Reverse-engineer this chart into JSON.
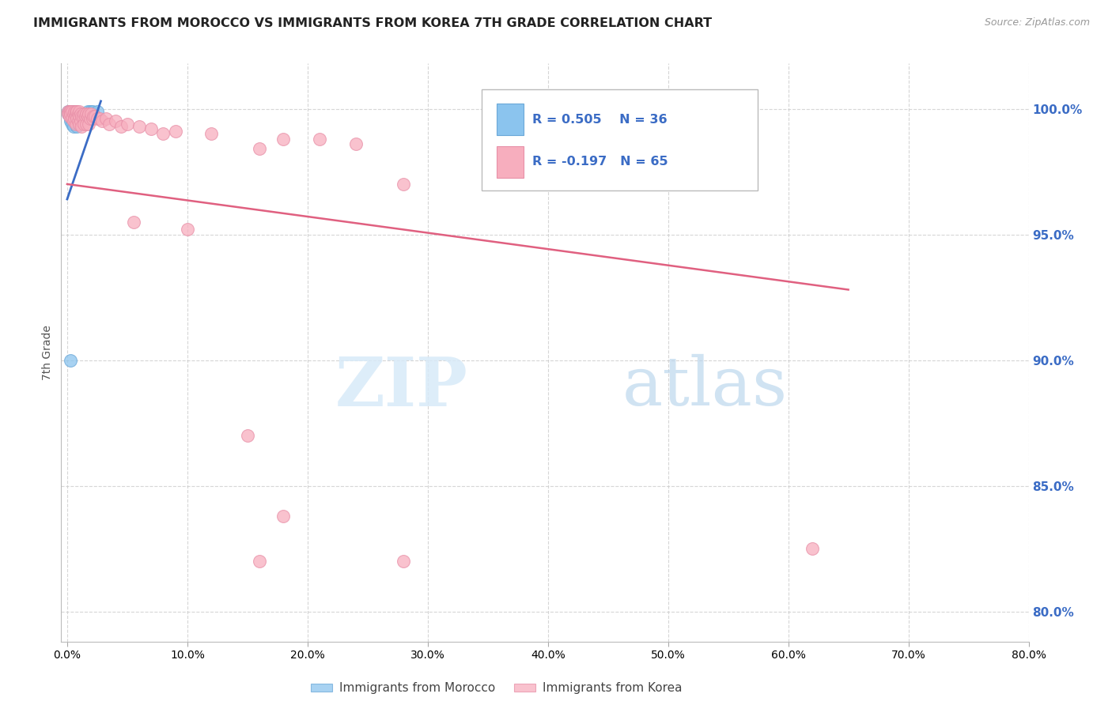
{
  "title": "IMMIGRANTS FROM MOROCCO VS IMMIGRANTS FROM KOREA 7TH GRADE CORRELATION CHART",
  "source": "Source: ZipAtlas.com",
  "ylabel": "7th Grade",
  "x_ticks": [
    0.0,
    0.1,
    0.2,
    0.3,
    0.4,
    0.5,
    0.6,
    0.7,
    0.8
  ],
  "x_tick_labels": [
    "0.0%",
    "10.0%",
    "20.0%",
    "30.0%",
    "40.0%",
    "50.0%",
    "60.0%",
    "70.0%",
    "80.0%"
  ],
  "y_ticks": [
    0.8,
    0.85,
    0.9,
    0.95,
    1.0
  ],
  "y_tick_labels": [
    "80.0%",
    "85.0%",
    "90.0%",
    "95.0%",
    "100.0%"
  ],
  "xlim": [
    -0.005,
    0.8
  ],
  "ylim": [
    0.788,
    1.018
  ],
  "morocco_color": "#8BC4EE",
  "korea_color": "#F7AEBE",
  "morocco_edge_color": "#6BA8D8",
  "korea_edge_color": "#E890A8",
  "morocco_line_color": "#3B6CC5",
  "korea_line_color": "#E06080",
  "legend_r_morocco": "R = 0.505",
  "legend_n_morocco": "N = 36",
  "legend_r_korea": "R = -0.197",
  "legend_n_korea": "N = 65",
  "legend_label_morocco": "Immigrants from Morocco",
  "legend_label_korea": "Immigrants from Korea",
  "watermark_zip": "ZIP",
  "watermark_atlas": "atlas",
  "background_color": "#FFFFFF",
  "grid_color": "#CCCCCC",
  "title_color": "#222222",
  "axis_label_color": "#555555",
  "right_axis_color": "#3B6CC5",
  "morocco_x": [
    0.001,
    0.001,
    0.002,
    0.002,
    0.003,
    0.003,
    0.003,
    0.003,
    0.003,
    0.003,
    0.004,
    0.004,
    0.004,
    0.005,
    0.005,
    0.005,
    0.006,
    0.006,
    0.007,
    0.007,
    0.008,
    0.008,
    0.008,
    0.009,
    0.009,
    0.01,
    0.011,
    0.012,
    0.013,
    0.014,
    0.015,
    0.017,
    0.019,
    0.021,
    0.025,
    0.003
  ],
  "morocco_y": [
    0.999,
    0.998,
    0.999,
    0.997,
    0.999,
    0.999,
    0.998,
    0.997,
    0.996,
    0.995,
    0.999,
    0.997,
    0.994,
    0.999,
    0.997,
    0.993,
    0.999,
    0.996,
    0.999,
    0.995,
    0.998,
    0.996,
    0.993,
    0.997,
    0.994,
    0.996,
    0.997,
    0.997,
    0.998,
    0.998,
    0.998,
    0.999,
    0.999,
    0.999,
    0.999,
    0.9
  ],
  "korea_x": [
    0.001,
    0.001,
    0.002,
    0.002,
    0.003,
    0.003,
    0.004,
    0.004,
    0.005,
    0.005,
    0.006,
    0.006,
    0.007,
    0.007,
    0.007,
    0.008,
    0.008,
    0.009,
    0.009,
    0.01,
    0.01,
    0.01,
    0.011,
    0.011,
    0.012,
    0.012,
    0.013,
    0.014,
    0.014,
    0.015,
    0.016,
    0.016,
    0.017,
    0.018,
    0.018,
    0.019,
    0.02,
    0.021,
    0.022,
    0.023,
    0.025,
    0.027,
    0.029,
    0.032,
    0.035,
    0.04,
    0.045,
    0.05,
    0.055,
    0.06,
    0.07,
    0.08,
    0.09,
    0.1,
    0.12,
    0.15,
    0.18,
    0.21,
    0.24,
    0.28,
    0.18,
    0.28,
    0.16,
    0.62,
    0.16
  ],
  "korea_y": [
    0.999,
    0.998,
    0.999,
    0.997,
    0.999,
    0.998,
    0.999,
    0.996,
    0.998,
    0.995,
    0.999,
    0.996,
    0.999,
    0.997,
    0.994,
    0.999,
    0.996,
    0.998,
    0.995,
    0.999,
    0.997,
    0.994,
    0.998,
    0.995,
    0.997,
    0.993,
    0.997,
    0.998,
    0.994,
    0.997,
    0.998,
    0.994,
    0.997,
    0.998,
    0.994,
    0.996,
    0.998,
    0.996,
    0.997,
    0.997,
    0.996,
    0.996,
    0.995,
    0.996,
    0.994,
    0.995,
    0.993,
    0.994,
    0.955,
    0.993,
    0.992,
    0.99,
    0.991,
    0.952,
    0.99,
    0.87,
    0.988,
    0.988,
    0.986,
    0.97,
    0.838,
    0.82,
    0.984,
    0.825,
    0.82
  ]
}
